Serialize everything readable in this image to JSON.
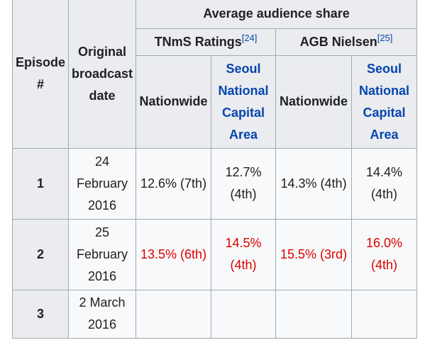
{
  "table": {
    "headers": {
      "episode": "Episode #",
      "broadcast_date": "Original broadcast date",
      "average_share": "Average audience share",
      "tnms": {
        "label": "TNmS Ratings",
        "ref": "[24]"
      },
      "agb": {
        "label": "AGB Nielsen",
        "ref": "[25]"
      },
      "nationwide_1": "Nationwide",
      "seoul_1": "Seoul National Capital Area",
      "nationwide_2": "Nationwide",
      "seoul_2": "Seoul National Capital Area"
    },
    "rows": [
      {
        "episode": "1",
        "date": "24 February 2016",
        "tnms_nationwide": "12.6% (7th)",
        "tnms_seoul": "12.7% (4th)",
        "agb_nationwide": "14.3% (4th)",
        "agb_seoul": "14.4% (4th)",
        "highest": false
      },
      {
        "episode": "2",
        "date": "25 February 2016",
        "tnms_nationwide": "13.5% (6th)",
        "tnms_seoul": "14.5% (4th)",
        "agb_nationwide": "15.5% (3rd)",
        "agb_seoul": "16.0% (4th)",
        "highest": true
      },
      {
        "episode": "3",
        "date": "2 March 2016",
        "tnms_nationwide": "",
        "tnms_seoul": "",
        "agb_nationwide": "",
        "agb_seoul": "",
        "highest": false
      }
    ],
    "colors": {
      "header_bg": "#eaecf0",
      "cell_bg": "#f8f9fa",
      "border": "#a2a9b1",
      "link": "#0645ad",
      "highest_value": "#dd0000"
    }
  }
}
